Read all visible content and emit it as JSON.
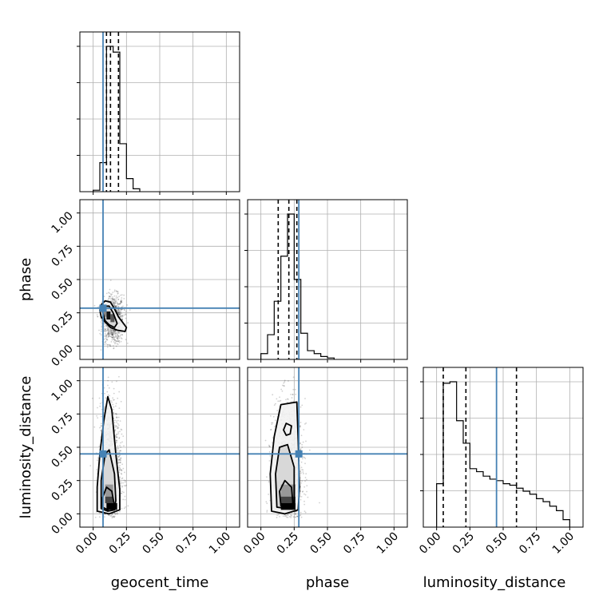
{
  "chart_data": {
    "type": "corner",
    "parameters": [
      "geocent_time",
      "phase",
      "luminosity_distance"
    ],
    "tick_labels": [
      "0.00",
      "0.25",
      "0.50",
      "0.75",
      "1.00"
    ],
    "axis_range": [
      -0.1,
      1.1
    ],
    "grid": true,
    "truths": {
      "color": "#4682b4",
      "values": [
        0.074,
        0.285,
        0.45
      ]
    },
    "quantiles": {
      "geocent_time": [
        0.1,
        0.13,
        0.19
      ],
      "phase": [
        0.13,
        0.21,
        0.27
      ],
      "luminosity_distance": [
        0.05,
        0.22,
        0.6
      ]
    },
    "histograms": {
      "geocent_time": {
        "edges": [
          0.0,
          0.05,
          0.1,
          0.15,
          0.2,
          0.25,
          0.3,
          0.35
        ],
        "counts": [
          0.01,
          0.2,
          1.0,
          0.96,
          0.33,
          0.09,
          0.02
        ]
      },
      "phase": {
        "edges": [
          0.0,
          0.05,
          0.1,
          0.15,
          0.2,
          0.25,
          0.3,
          0.35,
          0.4,
          0.45,
          0.5,
          0.55
        ],
        "counts": [
          0.04,
          0.17,
          0.4,
          0.71,
          1.0,
          0.55,
          0.18,
          0.06,
          0.04,
          0.02,
          0.01
        ]
      },
      "luminosity_distance": {
        "edges": [
          0.0,
          0.05,
          0.1,
          0.15,
          0.2,
          0.25,
          0.3,
          0.35,
          0.4,
          0.45,
          0.5,
          0.55,
          0.6,
          0.65,
          0.7,
          0.75,
          0.8,
          0.85,
          0.9,
          0.95,
          1.0
        ],
        "counts": [
          0.29,
          0.96,
          0.97,
          0.71,
          0.56,
          0.39,
          0.37,
          0.34,
          0.32,
          0.31,
          0.29,
          0.28,
          0.26,
          0.24,
          0.22,
          0.19,
          0.17,
          0.14,
          0.11,
          0.05
        ]
      }
    },
    "pairs": [
      {
        "x": "geocent_time",
        "y": "phase",
        "contours": [
          [
            [
              0.05,
              0.27
            ],
            [
              0.06,
              0.31
            ],
            [
              0.09,
              0.34
            ],
            [
              0.13,
              0.33
            ],
            [
              0.16,
              0.28
            ],
            [
              0.19,
              0.22
            ],
            [
              0.25,
              0.14
            ],
            [
              0.24,
              0.11
            ],
            [
              0.18,
              0.12
            ],
            [
              0.13,
              0.14
            ],
            [
              0.09,
              0.18
            ],
            [
              0.06,
              0.22
            ]
          ],
          [
            [
              0.07,
              0.26
            ],
            [
              0.09,
              0.3
            ],
            [
              0.12,
              0.3
            ],
            [
              0.15,
              0.25
            ],
            [
              0.18,
              0.17
            ],
            [
              0.16,
              0.14
            ],
            [
              0.12,
              0.16
            ],
            [
              0.09,
              0.19
            ]
          ]
        ],
        "dense_bins": [
          {
            "x": [
              0.1,
              0.13
            ],
            "y": [
              0.2,
              0.26
            ],
            "shade": "#111111"
          },
          {
            "x": [
              0.13,
              0.16
            ],
            "y": [
              0.18,
              0.24
            ],
            "shade": "#555555"
          },
          {
            "x": [
              0.08,
              0.1
            ],
            "y": [
              0.22,
              0.28
            ],
            "shade": "#888888"
          }
        ],
        "scatter": {
          "x_center": 0.15,
          "y_center": 0.2,
          "x_spread": 0.05,
          "y_spread": 0.09,
          "n": 1000
        }
      },
      {
        "x": "geocent_time",
        "y": "luminosity_distance",
        "contours": [
          [
            [
              0.03,
              0.02
            ],
            [
              0.03,
              0.2
            ],
            [
              0.05,
              0.45
            ],
            [
              0.08,
              0.7
            ],
            [
              0.11,
              0.88
            ],
            [
              0.14,
              0.78
            ],
            [
              0.17,
              0.45
            ],
            [
              0.2,
              0.18
            ],
            [
              0.2,
              0.03
            ],
            [
              0.12,
              0.0
            ]
          ],
          [
            [
              0.06,
              0.04
            ],
            [
              0.06,
              0.25
            ],
            [
              0.09,
              0.45
            ],
            [
              0.12,
              0.48
            ],
            [
              0.16,
              0.3
            ],
            [
              0.17,
              0.1
            ],
            [
              0.16,
              0.03
            ],
            [
              0.11,
              0.02
            ]
          ],
          [
            [
              0.07,
              0.05
            ],
            [
              0.07,
              0.12
            ],
            [
              0.1,
              0.2
            ],
            [
              0.14,
              0.17
            ],
            [
              0.16,
              0.06
            ],
            [
              0.11,
              0.03
            ]
          ]
        ],
        "dense_bins": [
          {
            "x": [
              0.1,
              0.18
            ],
            "y": [
              0.03,
              0.08
            ],
            "shade": "#000000"
          },
          {
            "x": [
              0.09,
              0.15
            ],
            "y": [
              0.08,
              0.13
            ],
            "shade": "#444444"
          },
          {
            "x": [
              0.09,
              0.15
            ],
            "y": [
              0.13,
              0.22
            ],
            "shade": "#999999"
          }
        ],
        "scatter": {
          "x_center": 0.13,
          "y_center": 0.32,
          "x_spread": 0.05,
          "y_spread": 0.26,
          "n": 1500
        }
      },
      {
        "x": "phase",
        "y": "luminosity_distance",
        "contours": [
          [
            [
              0.08,
              0.02
            ],
            [
              0.07,
              0.3
            ],
            [
              0.1,
              0.58
            ],
            [
              0.15,
              0.82
            ],
            [
              0.27,
              0.84
            ],
            [
              0.28,
              0.55
            ],
            [
              0.29,
              0.2
            ],
            [
              0.28,
              0.03
            ],
            [
              0.18,
              0.0
            ]
          ],
          [
            [
              0.12,
              0.05
            ],
            [
              0.11,
              0.3
            ],
            [
              0.14,
              0.5
            ],
            [
              0.2,
              0.52
            ],
            [
              0.25,
              0.35
            ],
            [
              0.25,
              0.08
            ],
            [
              0.19,
              0.04
            ]
          ],
          [
            [
              0.15,
              0.06
            ],
            [
              0.14,
              0.17
            ],
            [
              0.18,
              0.25
            ],
            [
              0.23,
              0.2
            ],
            [
              0.24,
              0.08
            ],
            [
              0.19,
              0.05
            ]
          ],
          [
            [
              0.17,
              0.63
            ],
            [
              0.19,
              0.68
            ],
            [
              0.23,
              0.66
            ],
            [
              0.22,
              0.6
            ],
            [
              0.19,
              0.59
            ]
          ]
        ],
        "dense_bins": [
          {
            "x": [
              0.15,
              0.26
            ],
            "y": [
              0.03,
              0.08
            ],
            "shade": "#000000"
          },
          {
            "x": [
              0.15,
              0.26
            ],
            "y": [
              0.08,
              0.13
            ],
            "shade": "#444444"
          },
          {
            "x": [
              0.15,
              0.26
            ],
            "y": [
              0.13,
              0.22
            ],
            "shade": "#999999"
          }
        ],
        "scatter": {
          "x_center": 0.2,
          "y_center": 0.32,
          "x_spread": 0.07,
          "y_spread": 0.26,
          "n": 1500
        }
      }
    ]
  }
}
